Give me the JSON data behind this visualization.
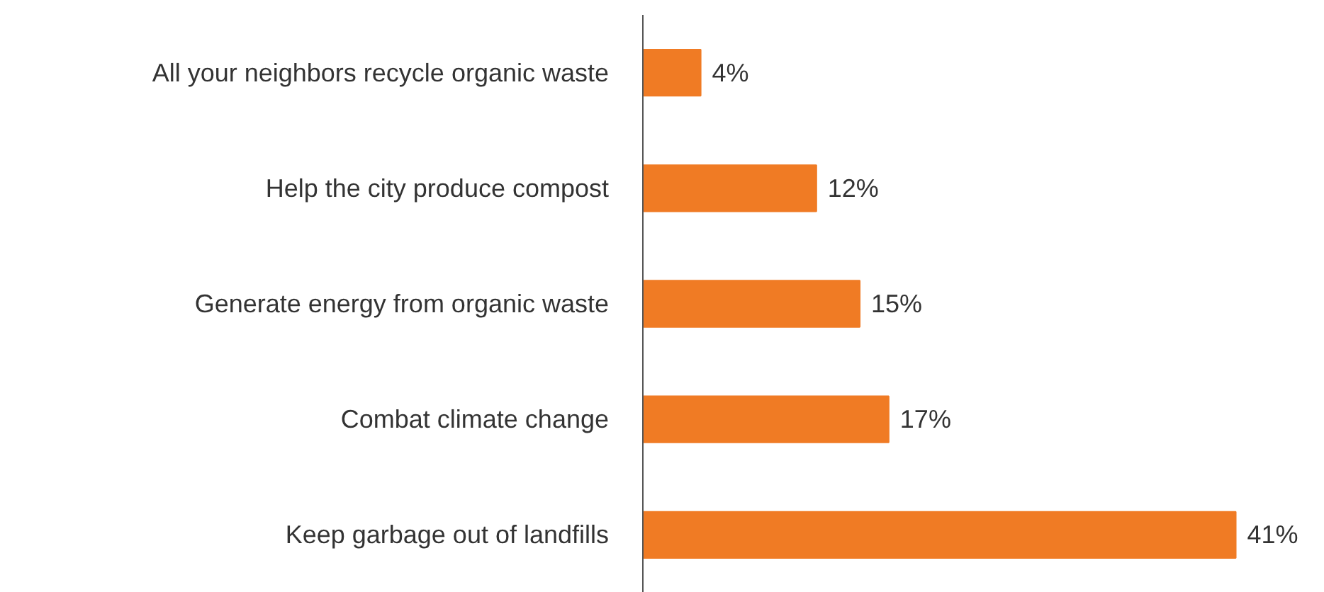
{
  "chart_data": {
    "type": "bar",
    "orientation": "horizontal",
    "categories": [
      "All your neighbors recycle organic waste",
      "Help the city produce compost",
      "Generate energy from organic waste",
      "Combat climate change",
      "Keep garbage out of landfills"
    ],
    "values": [
      4,
      12,
      15,
      17,
      41
    ],
    "color": "#f07b24",
    "value_labels": [
      "4%",
      "12%",
      "15%",
      "17%",
      "41%"
    ],
    "tick_labels": "y"
  }
}
